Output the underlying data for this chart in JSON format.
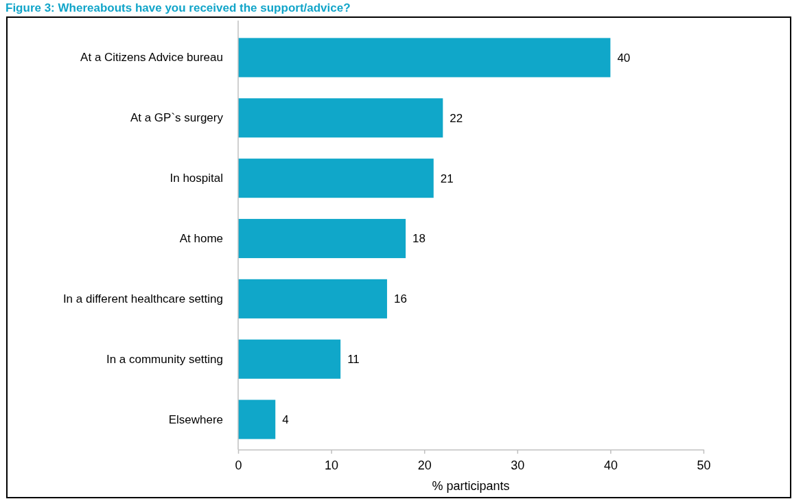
{
  "chart_data": {
    "type": "bar",
    "orientation": "horizontal",
    "title": "Figure 3: Whereabouts have you received the support/advice?",
    "xlabel": "% participants",
    "categories": [
      "At a Citizens Advice bureau",
      "At a GP`s surgery",
      "In hospital",
      "At home",
      "In a different healthcare setting",
      "In a community setting",
      "Elsewhere"
    ],
    "values": [
      40,
      22,
      21,
      18,
      16,
      11,
      4
    ],
    "color": "#10a7c9",
    "xlim": [
      0,
      50
    ],
    "xticks": [
      0,
      10,
      20,
      30,
      40,
      50
    ],
    "data_labels": true
  }
}
